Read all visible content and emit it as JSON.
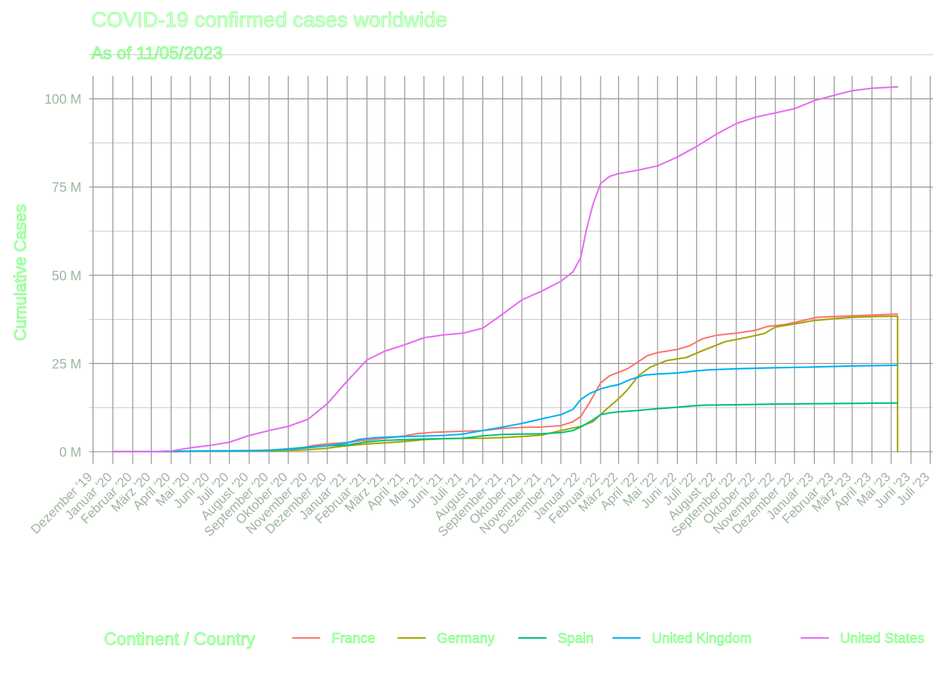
{
  "chart_data": {
    "type": "line",
    "title": "COVID-19 confirmed cases worldwide",
    "subtitle": "As of 11/05/2023",
    "xlabel": "",
    "ylabel": "Cumulative Cases",
    "legend_title": "Continent / Country",
    "legend_position": "bottom",
    "grid": true,
    "x_range": [
      "2019-12-01",
      "2023-07-01"
    ],
    "ylim": [
      0,
      105000000
    ],
    "y_ticks": [
      {
        "value": 0,
        "label": "0 M"
      },
      {
        "value": 25000000,
        "label": "25 M"
      },
      {
        "value": 50000000,
        "label": "50 M"
      },
      {
        "value": 75000000,
        "label": "75 M"
      },
      {
        "value": 100000000,
        "label": "100 M"
      }
    ],
    "x_ticks": [
      {
        "date": "2019-12-01",
        "label": "Dezember '19"
      },
      {
        "date": "2020-01-01",
        "label": "Januar '20"
      },
      {
        "date": "2020-02-01",
        "label": "Februar '20"
      },
      {
        "date": "2020-03-01",
        "label": "März '20"
      },
      {
        "date": "2020-04-01",
        "label": "April '20"
      },
      {
        "date": "2020-05-01",
        "label": "Mai '20"
      },
      {
        "date": "2020-06-01",
        "label": "Juni '20"
      },
      {
        "date": "2020-07-01",
        "label": "Juli '20"
      },
      {
        "date": "2020-08-01",
        "label": "August '20"
      },
      {
        "date": "2020-09-01",
        "label": "September '20"
      },
      {
        "date": "2020-10-01",
        "label": "Oktober '20"
      },
      {
        "date": "2020-11-01",
        "label": "November '20"
      },
      {
        "date": "2020-12-01",
        "label": "Dezember '20"
      },
      {
        "date": "2021-01-01",
        "label": "Januar '21"
      },
      {
        "date": "2021-02-01",
        "label": "Februar '21"
      },
      {
        "date": "2021-03-01",
        "label": "März '21"
      },
      {
        "date": "2021-04-01",
        "label": "April '21"
      },
      {
        "date": "2021-05-01",
        "label": "Mai '21"
      },
      {
        "date": "2021-06-01",
        "label": "Juni '21"
      },
      {
        "date": "2021-07-01",
        "label": "Juli '21"
      },
      {
        "date": "2021-08-01",
        "label": "August '21"
      },
      {
        "date": "2021-09-01",
        "label": "September '21"
      },
      {
        "date": "2021-10-01",
        "label": "Oktober '21"
      },
      {
        "date": "2021-11-01",
        "label": "November '21"
      },
      {
        "date": "2021-12-01",
        "label": "Dezember '21"
      },
      {
        "date": "2022-01-01",
        "label": "Januar '22"
      },
      {
        "date": "2022-02-01",
        "label": "Februar '22"
      },
      {
        "date": "2022-03-01",
        "label": "März '22"
      },
      {
        "date": "2022-04-01",
        "label": "April '22"
      },
      {
        "date": "2022-05-01",
        "label": "Mai '22"
      },
      {
        "date": "2022-06-01",
        "label": "Juni '22"
      },
      {
        "date": "2022-07-01",
        "label": "Juli '22"
      },
      {
        "date": "2022-08-01",
        "label": "August '22"
      },
      {
        "date": "2022-09-01",
        "label": "September '22"
      },
      {
        "date": "2022-10-01",
        "label": "Oktober '22"
      },
      {
        "date": "2022-11-01",
        "label": "November '22"
      },
      {
        "date": "2022-12-01",
        "label": "Dezember '22"
      },
      {
        "date": "2023-01-01",
        "label": "Januar '23"
      },
      {
        "date": "2023-02-01",
        "label": "Februar '23"
      },
      {
        "date": "2023-03-01",
        "label": "März '23"
      },
      {
        "date": "2023-04-01",
        "label": "April '23"
      },
      {
        "date": "2023-05-01",
        "label": "Mai '23"
      },
      {
        "date": "2023-06-01",
        "label": "Juni '23"
      },
      {
        "date": "2023-07-01",
        "label": "Juli '23"
      }
    ],
    "series": [
      {
        "name": "France",
        "color": "#F8766D",
        "points": [
          [
            "2020-01-03",
            0
          ],
          [
            "2020-03-01",
            0
          ],
          [
            "2020-04-01",
            50000
          ],
          [
            "2020-06-01",
            150000
          ],
          [
            "2020-08-01",
            250000
          ],
          [
            "2020-09-01",
            350000
          ],
          [
            "2020-10-01",
            600000
          ],
          [
            "2020-10-20",
            1000000
          ],
          [
            "2020-11-10",
            1800000
          ],
          [
            "2020-12-01",
            2200000
          ],
          [
            "2021-01-01",
            2600000
          ],
          [
            "2021-02-01",
            3300000
          ],
          [
            "2021-03-01",
            3800000
          ],
          [
            "2021-04-01",
            4500000
          ],
          [
            "2021-04-20",
            5100000
          ],
          [
            "2021-05-15",
            5500000
          ],
          [
            "2021-06-15",
            5700000
          ],
          [
            "2021-08-01",
            6000000
          ],
          [
            "2021-09-01",
            6600000
          ],
          [
            "2021-10-01",
            6900000
          ],
          [
            "2021-11-01",
            7000000
          ],
          [
            "2021-12-01",
            7400000
          ],
          [
            "2021-12-20",
            8500000
          ],
          [
            "2022-01-01",
            10000000
          ],
          [
            "2022-01-15",
            14000000
          ],
          [
            "2022-02-01",
            19500000
          ],
          [
            "2022-02-15",
            21500000
          ],
          [
            "2022-03-01",
            22500000
          ],
          [
            "2022-03-15",
            23500000
          ],
          [
            "2022-04-01",
            25500000
          ],
          [
            "2022-04-15",
            27200000
          ],
          [
            "2022-05-01",
            28100000
          ],
          [
            "2022-06-01",
            29000000
          ],
          [
            "2022-06-20",
            30000000
          ],
          [
            "2022-07-10",
            32000000
          ],
          [
            "2022-08-01",
            33000000
          ],
          [
            "2022-09-01",
            33600000
          ],
          [
            "2022-10-01",
            34400000
          ],
          [
            "2022-10-20",
            35500000
          ],
          [
            "2022-11-15",
            36000000
          ],
          [
            "2022-12-15",
            37200000
          ],
          [
            "2023-01-05",
            38100000
          ],
          [
            "2023-02-01",
            38300000
          ],
          [
            "2023-03-01",
            38500000
          ],
          [
            "2023-04-01",
            38700000
          ],
          [
            "2023-05-11",
            39000000
          ]
        ]
      },
      {
        "name": "Germany",
        "color": "#A3A500",
        "points": [
          [
            "2020-01-03",
            0
          ],
          [
            "2020-03-01",
            0
          ],
          [
            "2020-04-01",
            60000
          ],
          [
            "2020-06-01",
            180000
          ],
          [
            "2020-08-01",
            200000
          ],
          [
            "2020-10-01",
            350000
          ],
          [
            "2020-11-01",
            550000
          ],
          [
            "2020-12-01",
            1000000
          ],
          [
            "2021-01-01",
            1700000
          ],
          [
            "2021-02-01",
            2200000
          ],
          [
            "2021-03-01",
            2500000
          ],
          [
            "2021-04-01",
            2900000
          ],
          [
            "2021-05-01",
            3400000
          ],
          [
            "2021-06-01",
            3700000
          ],
          [
            "2021-08-01",
            3800000
          ],
          [
            "2021-09-01",
            4000000
          ],
          [
            "2021-10-01",
            4300000
          ],
          [
            "2021-11-01",
            4700000
          ],
          [
            "2021-12-01",
            6000000
          ],
          [
            "2022-01-01",
            7200000
          ],
          [
            "2022-01-20",
            8500000
          ],
          [
            "2022-02-10",
            12000000
          ],
          [
            "2022-03-01",
            15000000
          ],
          [
            "2022-03-15",
            17500000
          ],
          [
            "2022-04-01",
            21500000
          ],
          [
            "2022-04-20",
            24000000
          ],
          [
            "2022-05-15",
            25800000
          ],
          [
            "2022-06-15",
            26700000
          ],
          [
            "2022-07-15",
            29000000
          ],
          [
            "2022-08-15",
            31200000
          ],
          [
            "2022-09-15",
            32300000
          ],
          [
            "2022-10-15",
            33500000
          ],
          [
            "2022-11-01",
            35300000
          ],
          [
            "2022-12-01",
            36200000
          ],
          [
            "2023-01-01",
            37200000
          ],
          [
            "2023-02-01",
            37700000
          ],
          [
            "2023-03-01",
            38100000
          ],
          [
            "2023-04-01",
            38300000
          ],
          [
            "2023-05-11",
            38400000
          ],
          [
            "2023-05-11",
            0
          ]
        ]
      },
      {
        "name": "Spain",
        "color": "#00BF7D",
        "points": [
          [
            "2020-01-03",
            0
          ],
          [
            "2020-03-01",
            0
          ],
          [
            "2020-04-01",
            100000
          ],
          [
            "2020-06-01",
            240000
          ],
          [
            "2020-08-01",
            300000
          ],
          [
            "2020-09-01",
            450000
          ],
          [
            "2020-10-01",
            800000
          ],
          [
            "2020-11-01",
            1300000
          ],
          [
            "2020-12-01",
            1700000
          ],
          [
            "2021-01-01",
            1900000
          ],
          [
            "2021-02-01",
            2800000
          ],
          [
            "2021-03-01",
            3200000
          ],
          [
            "2021-04-01",
            3400000
          ],
          [
            "2021-05-01",
            3600000
          ],
          [
            "2021-06-01",
            3700000
          ],
          [
            "2021-07-01",
            3800000
          ],
          [
            "2021-08-01",
            4500000
          ],
          [
            "2021-09-01",
            4900000
          ],
          [
            "2021-10-01",
            5000000
          ],
          [
            "2021-11-01",
            5100000
          ],
          [
            "2021-12-01",
            5400000
          ],
          [
            "2021-12-20",
            6000000
          ],
          [
            "2022-01-01",
            7000000
          ],
          [
            "2022-01-20",
            9000000
          ],
          [
            "2022-02-01",
            10500000
          ],
          [
            "2022-02-15",
            11000000
          ],
          [
            "2022-03-01",
            11300000
          ],
          [
            "2022-04-01",
            11700000
          ],
          [
            "2022-05-01",
            12200000
          ],
          [
            "2022-06-01",
            12600000
          ],
          [
            "2022-06-25",
            13000000
          ],
          [
            "2022-07-15",
            13200000
          ],
          [
            "2022-09-01",
            13300000
          ],
          [
            "2022-11-01",
            13500000
          ],
          [
            "2023-01-01",
            13600000
          ],
          [
            "2023-03-01",
            13700000
          ],
          [
            "2023-05-11",
            13800000
          ]
        ]
      },
      {
        "name": "United Kingdom",
        "color": "#00B0F6",
        "points": [
          [
            "2020-01-03",
            0
          ],
          [
            "2020-03-01",
            0
          ],
          [
            "2020-04-01",
            40000
          ],
          [
            "2020-06-01",
            200000
          ],
          [
            "2020-08-01",
            300000
          ],
          [
            "2020-09-01",
            400000
          ],
          [
            "2020-10-01",
            700000
          ],
          [
            "2020-11-01",
            1100000
          ],
          [
            "2020-12-01",
            1700000
          ],
          [
            "2021-01-01",
            2500000
          ],
          [
            "2021-01-20",
            3500000
          ],
          [
            "2021-02-15",
            4000000
          ],
          [
            "2021-04-01",
            4300000
          ],
          [
            "2021-06-01",
            4600000
          ],
          [
            "2021-07-01",
            5000000
          ],
          [
            "2021-08-01",
            6000000
          ],
          [
            "2021-09-01",
            7000000
          ],
          [
            "2021-10-01",
            8000000
          ],
          [
            "2021-11-01",
            9300000
          ],
          [
            "2021-12-01",
            10500000
          ],
          [
            "2021-12-20",
            12000000
          ],
          [
            "2022-01-01",
            14800000
          ],
          [
            "2022-01-15",
            16500000
          ],
          [
            "2022-02-01",
            17800000
          ],
          [
            "2022-02-15",
            18500000
          ],
          [
            "2022-03-01",
            19000000
          ],
          [
            "2022-03-20",
            20500000
          ],
          [
            "2022-04-10",
            21700000
          ],
          [
            "2022-05-01",
            22000000
          ],
          [
            "2022-06-01",
            22300000
          ],
          [
            "2022-06-25",
            22800000
          ],
          [
            "2022-07-20",
            23200000
          ],
          [
            "2022-09-01",
            23500000
          ],
          [
            "2022-11-01",
            23800000
          ],
          [
            "2023-01-01",
            24000000
          ],
          [
            "2023-03-01",
            24300000
          ],
          [
            "2023-05-11",
            24500000
          ]
        ]
      },
      {
        "name": "United States",
        "color": "#E76BF3",
        "points": [
          [
            "2020-01-03",
            0
          ],
          [
            "2020-03-01",
            0
          ],
          [
            "2020-04-01",
            200000
          ],
          [
            "2020-05-01",
            1100000
          ],
          [
            "2020-06-01",
            1800000
          ],
          [
            "2020-07-01",
            2700000
          ],
          [
            "2020-08-01",
            4600000
          ],
          [
            "2020-09-01",
            6000000
          ],
          [
            "2020-10-01",
            7200000
          ],
          [
            "2020-11-01",
            9200000
          ],
          [
            "2020-12-01",
            13600000
          ],
          [
            "2021-01-01",
            20000000
          ],
          [
            "2021-02-01",
            26000000
          ],
          [
            "2021-03-01",
            28500000
          ],
          [
            "2021-04-01",
            30300000
          ],
          [
            "2021-05-01",
            32300000
          ],
          [
            "2021-06-01",
            33100000
          ],
          [
            "2021-07-01",
            33600000
          ],
          [
            "2021-08-01",
            35000000
          ],
          [
            "2021-09-01",
            39000000
          ],
          [
            "2021-10-01",
            43000000
          ],
          [
            "2021-11-01",
            45500000
          ],
          [
            "2021-12-01",
            48300000
          ],
          [
            "2021-12-20",
            51000000
          ],
          [
            "2022-01-01",
            55000000
          ],
          [
            "2022-01-10",
            63000000
          ],
          [
            "2022-01-20",
            70000000
          ],
          [
            "2022-02-01",
            76000000
          ],
          [
            "2022-02-15",
            78000000
          ],
          [
            "2022-03-01",
            78800000
          ],
          [
            "2022-04-01",
            79800000
          ],
          [
            "2022-05-01",
            81000000
          ],
          [
            "2022-06-01",
            83500000
          ],
          [
            "2022-07-01",
            86500000
          ],
          [
            "2022-08-01",
            90000000
          ],
          [
            "2022-09-01",
            93000000
          ],
          [
            "2022-10-01",
            94800000
          ],
          [
            "2022-11-01",
            96000000
          ],
          [
            "2022-12-01",
            97200000
          ],
          [
            "2023-01-01",
            99500000
          ],
          [
            "2023-02-01",
            101000000
          ],
          [
            "2023-03-01",
            102300000
          ],
          [
            "2023-04-01",
            103000000
          ],
          [
            "2023-05-11",
            103400000
          ]
        ]
      }
    ]
  }
}
